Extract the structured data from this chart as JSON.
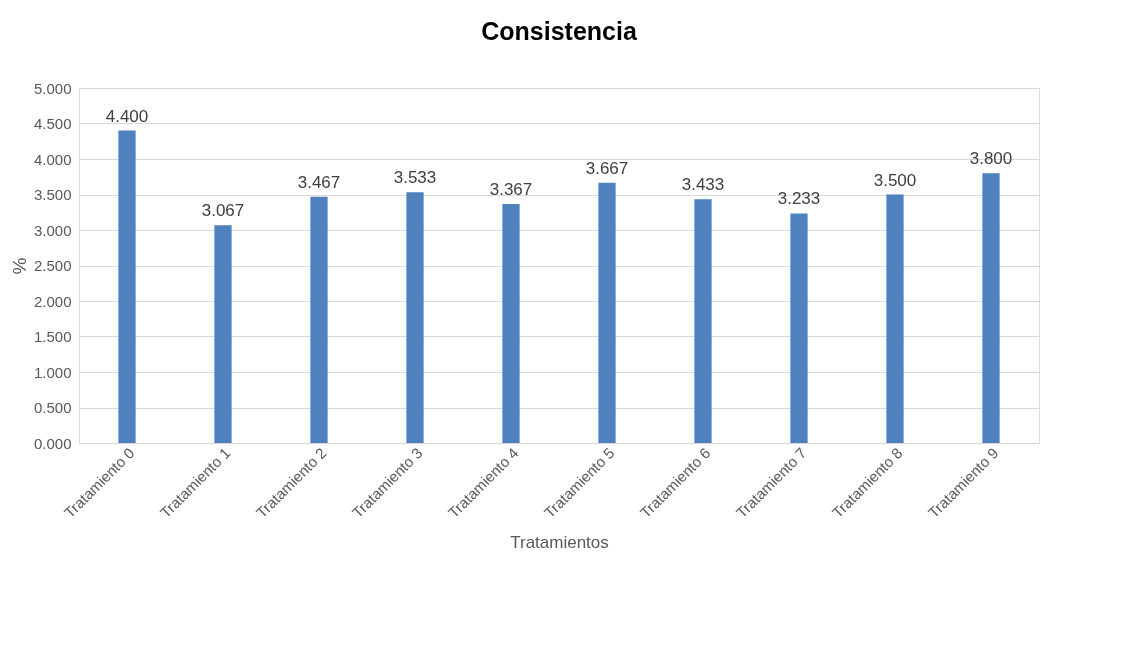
{
  "chart_data": {
    "type": "bar",
    "title": "Consistencia",
    "xlabel": "Tratamientos",
    "ylabel": "%",
    "categories": [
      "Tratamiento 0",
      "Tratamiento 1",
      "Tratamiento 2",
      "Tratamiento 3",
      "Tratamiento 4",
      "Tratamiento 5",
      "Tratamiento 6",
      "Tratamiento 7",
      "Tratamiento 8",
      "Tratamiento 9"
    ],
    "values": [
      4.4,
      3.067,
      3.467,
      3.533,
      3.367,
      3.667,
      3.433,
      3.233,
      3.5,
      3.8
    ],
    "value_labels": [
      "4.400",
      "3.067",
      "3.467",
      "3.533",
      "3.367",
      "3.667",
      "3.433",
      "3.233",
      "3.500",
      "3.800"
    ],
    "color": "#4f81bd",
    "ylim": [
      0,
      5
    ],
    "yticks": [
      {
        "value": 0,
        "label": "0.000"
      },
      {
        "value": 0.5,
        "label": "0.500"
      },
      {
        "value": 1,
        "label": "1.000"
      },
      {
        "value": 1.5,
        "label": "1.500"
      },
      {
        "value": 2,
        "label": "2.000"
      },
      {
        "value": 2.5,
        "label": "2.500"
      },
      {
        "value": 3,
        "label": "3.000"
      },
      {
        "value": 3.5,
        "label": "3.500"
      },
      {
        "value": 4,
        "label": "4.000"
      },
      {
        "value": 4.5,
        "label": "4.500"
      },
      {
        "value": 5,
        "label": "5.000"
      }
    ],
    "grid": "y"
  }
}
